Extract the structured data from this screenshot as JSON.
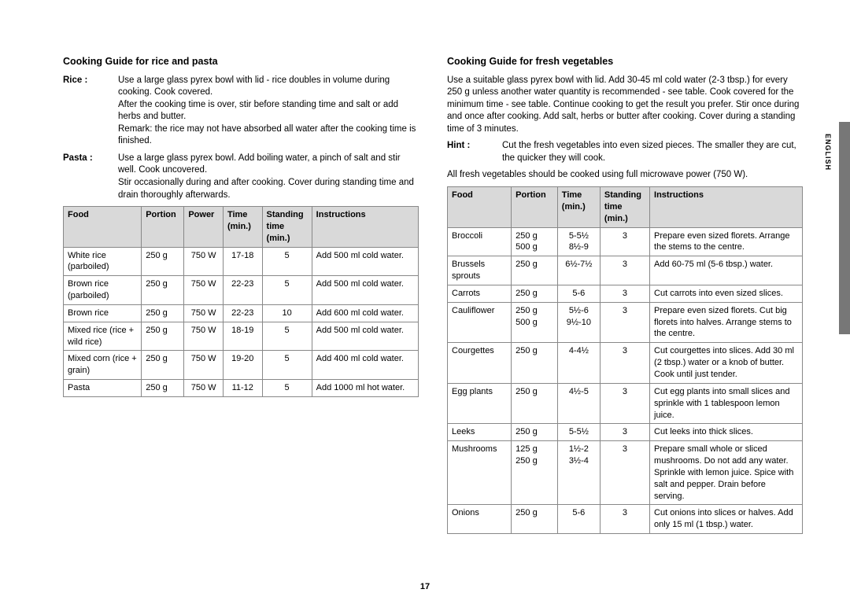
{
  "pageNumber": "17",
  "sideLabel": "ENGLISH",
  "left": {
    "heading": "Cooking Guide for rice and pasta",
    "rice": {
      "label": "Rice :",
      "text": "Use a large glass pyrex bowl with lid - rice doubles in volume during cooking. Cook covered.\nAfter the cooking time is over, stir before standing time and salt or add herbs and butter.\nRemark: the rice may not have absorbed all water after the cooking time is finished."
    },
    "pasta": {
      "label": "Pasta :",
      "text": "Use a large glass pyrex bowl. Add boiling water, a pinch of salt and stir well. Cook uncovered.\nStir occasionally during and after cooking. Cover during standing time and drain thoroughly afterwards."
    },
    "headers": [
      "Food",
      "Portion",
      "Power",
      "Time (min.)",
      "Standing time (min.)",
      "Instructions"
    ],
    "rows": [
      [
        "White rice (parboiled)",
        "250 g",
        "750 W",
        "17-18",
        "5",
        "Add 500 ml cold water."
      ],
      [
        "Brown rice (parboiled)",
        "250 g",
        "750 W",
        "22-23",
        "5",
        "Add 500 ml cold water."
      ],
      [
        "Brown rice",
        "250 g",
        "750 W",
        "22-23",
        "10",
        "Add 600 ml cold water."
      ],
      [
        "Mixed rice (rice + wild rice)",
        "250 g",
        "750 W",
        "18-19",
        "5",
        "Add 500 ml cold water."
      ],
      [
        "Mixed corn (rice + grain)",
        "250 g",
        "750 W",
        "19-20",
        "5",
        "Add 400 ml cold water."
      ],
      [
        "Pasta",
        "250 g",
        "750 W",
        "11-12",
        "5",
        "Add 1000 ml hot water."
      ]
    ]
  },
  "right": {
    "heading": "Cooking Guide for fresh vegetables",
    "para": "Use a suitable glass pyrex bowl with lid. Add 30-45 ml cold water (2-3 tbsp.) for every 250 g unless another water quantity is recommended - see table. Cook covered for the minimum time - see table. Continue cooking to get the result you prefer. Stir once during and once after cooking. Add salt, herbs or butter after cooking. Cover during a standing time of 3 minutes.",
    "hint": {
      "label": "Hint :",
      "text": "Cut the fresh vegetables into even sized pieces. The smaller they are cut, the quicker they will cook."
    },
    "note": "All fresh vegetables should be cooked using full microwave power (750 W).",
    "headers": [
      "Food",
      "Portion",
      "Time (min.)",
      "Standing time (min.)",
      "Instructions"
    ],
    "rows": [
      [
        "Broccoli",
        "250 g\n500 g",
        "5-5½\n8½-9",
        "3",
        "Prepare even sized florets. Arrange the stems to the centre."
      ],
      [
        "Brussels sprouts",
        "250 g",
        "6½-7½",
        "3",
        "Add 60-75 ml (5-6 tbsp.) water."
      ],
      [
        "Carrots",
        "250 g",
        "5-6",
        "3",
        "Cut carrots into even sized slices."
      ],
      [
        "Cauliflower",
        "250 g\n500 g",
        "5½-6\n9½-10",
        "3",
        "Prepare even sized florets. Cut big florets into halves. Arrange stems to the centre."
      ],
      [
        "Courgettes",
        "250 g",
        "4-4½",
        "3",
        "Cut courgettes into slices. Add 30 ml (2 tbsp.) water or a knob of butter. Cook until just tender."
      ],
      [
        "Egg plants",
        "250 g",
        "4½-5",
        "3",
        "Cut egg plants into small slices and sprinkle with 1 tablespoon lemon juice."
      ],
      [
        "Leeks",
        "250 g",
        "5-5½",
        "3",
        "Cut leeks into thick slices."
      ],
      [
        "Mushrooms",
        "125 g\n250 g",
        "1½-2\n3½-4",
        "3",
        "Prepare small whole or sliced mushrooms. Do not add any water. Sprinkle with lemon juice. Spice with salt and pepper. Drain before serving."
      ],
      [
        "Onions",
        "250 g",
        "5-6",
        "3",
        "Cut onions into slices or halves. Add only 15 ml (1 tbsp.) water."
      ]
    ]
  }
}
